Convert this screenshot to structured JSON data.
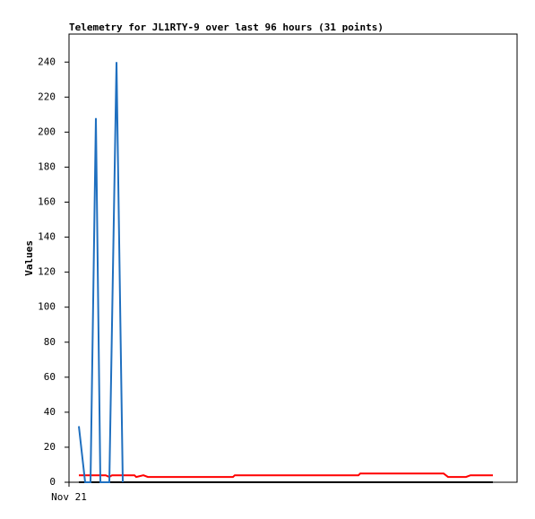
{
  "chart_data": {
    "type": "line",
    "title": "Telemetry for JL1RTY-9 over last 96 hours (31 points)",
    "ylabel": "Values",
    "xlim": [
      0,
      100
    ],
    "xticks": [
      {
        "value": 0,
        "label": "Nov 21"
      }
    ],
    "ylim": [
      0,
      256
    ],
    "yticks": [
      0,
      20,
      40,
      60,
      80,
      100,
      120,
      140,
      160,
      180,
      200,
      220,
      240
    ],
    "grid": false,
    "series": [
      {
        "color": "#000000",
        "x": [
          2.2,
          94.6
        ],
        "values": [
          0,
          0
        ]
      },
      {
        "color": "#ff0000",
        "x": [
          2.2,
          8.2,
          9.0,
          9.6,
          14.6,
          15.0,
          16.6,
          17.6,
          36.6,
          37.0,
          64.6,
          65.0,
          83.6,
          84.6,
          88.6,
          89.6,
          94.6
        ],
        "values": [
          4,
          4,
          3,
          4,
          4,
          3,
          4,
          3,
          3,
          4,
          4,
          5,
          5,
          3,
          3,
          4,
          4
        ]
      },
      {
        "color": "#1f6fbf",
        "x": [
          2.2,
          3.6,
          4.8,
          6.0,
          7.0,
          9.0,
          10.6,
          12.0
        ],
        "values": [
          32,
          0,
          0,
          208,
          0,
          0,
          240,
          0
        ]
      }
    ]
  }
}
